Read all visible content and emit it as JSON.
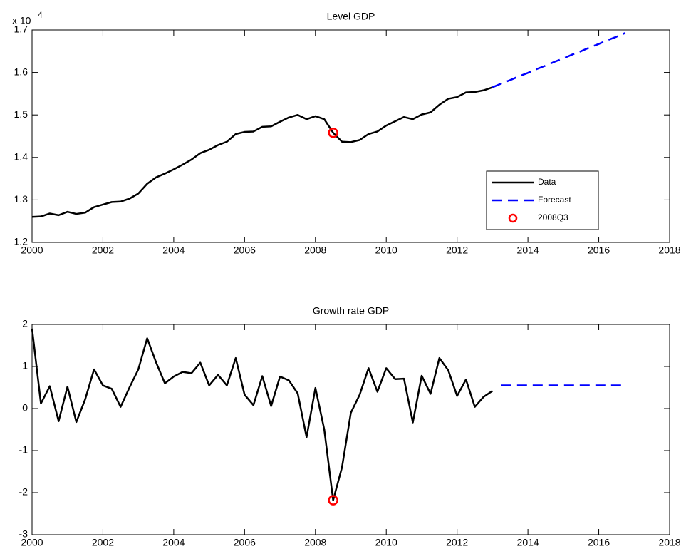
{
  "chart_data": [
    {
      "type": "line",
      "title": "Level GDP",
      "y_multiplier": {
        "base": "x 10",
        "exponent": "4"
      },
      "xlim": [
        2000,
        2018
      ],
      "xticks": [
        2000,
        2002,
        2004,
        2006,
        2008,
        2010,
        2012,
        2014,
        2016,
        2018
      ],
      "ylim": [
        1.2,
        1.7
      ],
      "yticks": [
        1.2,
        1.3,
        1.4,
        1.5,
        1.6,
        1.7
      ],
      "grid": false,
      "legend": "southeast",
      "series": [
        {
          "name": "Data",
          "color": "#000000",
          "style": "solid",
          "x": [
            2000,
            2000.25,
            2000.5,
            2000.75,
            2001,
            2001.25,
            2001.5,
            2001.75,
            2002,
            2002.25,
            2002.5,
            2002.75,
            2003,
            2003.25,
            2003.5,
            2003.75,
            2004,
            2004.25,
            2004.5,
            2004.75,
            2005,
            2005.25,
            2005.5,
            2005.75,
            2006,
            2006.25,
            2006.5,
            2006.75,
            2007,
            2007.25,
            2007.5,
            2007.75,
            2008,
            2008.25,
            2008.5,
            2008.75,
            2009,
            2009.25,
            2009.5,
            2009.75,
            2010,
            2010.25,
            2010.5,
            2010.75,
            2011,
            2011.25,
            2011.5,
            2011.75,
            2012,
            2012.25,
            2012.5,
            2012.75,
            2013
          ],
          "values": [
            1.26,
            1.261,
            1.268,
            1.264,
            1.272,
            1.267,
            1.27,
            1.283,
            1.289,
            1.295,
            1.296,
            1.303,
            1.315,
            1.338,
            1.353,
            1.362,
            1.372,
            1.383,
            1.395,
            1.41,
            1.418,
            1.429,
            1.437,
            1.455,
            1.46,
            1.461,
            1.472,
            1.473,
            1.484,
            1.494,
            1.5,
            1.49,
            1.497,
            1.49,
            1.458,
            1.437,
            1.436,
            1.441,
            1.455,
            1.461,
            1.475,
            1.485,
            1.495,
            1.49,
            1.501,
            1.506,
            1.524,
            1.538,
            1.542,
            1.553,
            1.554,
            1.558,
            1.565
          ]
        },
        {
          "name": "Forecast",
          "color": "#0000ff",
          "style": "dashed",
          "x": [
            2013,
            2013.25,
            2013.5,
            2013.75,
            2014,
            2014.25,
            2014.5,
            2014.75,
            2015,
            2015.25,
            2015.5,
            2015.75,
            2016,
            2016.25,
            2016.5,
            2016.75
          ],
          "values": [
            1.565,
            1.574,
            1.582,
            1.591,
            1.599,
            1.608,
            1.616,
            1.625,
            1.633,
            1.642,
            1.65,
            1.659,
            1.667,
            1.676,
            1.684,
            1.693
          ]
        },
        {
          "name": "2008Q3",
          "color": "#ff0000",
          "style": "marker",
          "x": [
            2008.5
          ],
          "values": [
            1.458
          ]
        }
      ]
    },
    {
      "type": "line",
      "title": "Growth rate GDP",
      "xlim": [
        2000,
        2018
      ],
      "xticks": [
        2000,
        2002,
        2004,
        2006,
        2008,
        2010,
        2012,
        2014,
        2016,
        2018
      ],
      "ylim": [
        -3,
        2
      ],
      "yticks": [
        -3,
        -2,
        -1,
        0,
        1,
        2
      ],
      "grid": false,
      "legend": "none",
      "series": [
        {
          "color": "#000000",
          "style": "solid",
          "x": [
            2000,
            2000.25,
            2000.5,
            2000.75,
            2001,
            2001.25,
            2001.5,
            2001.75,
            2002,
            2002.25,
            2002.5,
            2002.75,
            2003,
            2003.25,
            2003.5,
            2003.75,
            2004,
            2004.25,
            2004.5,
            2004.75,
            2005,
            2005.25,
            2005.5,
            2005.75,
            2006,
            2006.25,
            2006.5,
            2006.75,
            2007,
            2007.25,
            2007.5,
            2007.75,
            2008,
            2008.25,
            2008.5,
            2008.75,
            2009,
            2009.25,
            2009.5,
            2009.75,
            2010,
            2010.25,
            2010.5,
            2010.75,
            2011,
            2011.25,
            2011.5,
            2011.75,
            2012,
            2012.25,
            2012.5,
            2012.75,
            2013
          ],
          "values": [
            1.9,
            0.12,
            0.53,
            -0.3,
            0.52,
            -0.32,
            0.22,
            0.93,
            0.55,
            0.47,
            0.04,
            0.5,
            0.93,
            1.67,
            1.1,
            0.6,
            0.76,
            0.87,
            0.84,
            1.09,
            0.55,
            0.8,
            0.55,
            1.2,
            0.33,
            0.08,
            0.77,
            0.06,
            0.76,
            0.67,
            0.36,
            -0.68,
            0.49,
            -0.5,
            -2.18,
            -1.4,
            -0.1,
            0.33,
            0.96,
            0.4,
            0.96,
            0.7,
            0.71,
            -0.33,
            0.78,
            0.35,
            1.2,
            0.91,
            0.3,
            0.69,
            0.04,
            0.28,
            0.42
          ]
        },
        {
          "color": "#0000ff",
          "style": "dashed",
          "x": [
            2013.25,
            2013.5,
            2013.75,
            2014,
            2014.25,
            2014.5,
            2014.75,
            2015,
            2015.25,
            2015.5,
            2015.75,
            2016,
            2016.25,
            2016.5,
            2016.75
          ],
          "values": [
            0.55,
            0.55,
            0.55,
            0.55,
            0.55,
            0.55,
            0.55,
            0.55,
            0.55,
            0.55,
            0.55,
            0.55,
            0.55,
            0.55,
            0.55
          ]
        },
        {
          "color": "#ff0000",
          "style": "marker",
          "x": [
            2008.5
          ],
          "values": [
            -2.18
          ]
        }
      ]
    }
  ]
}
